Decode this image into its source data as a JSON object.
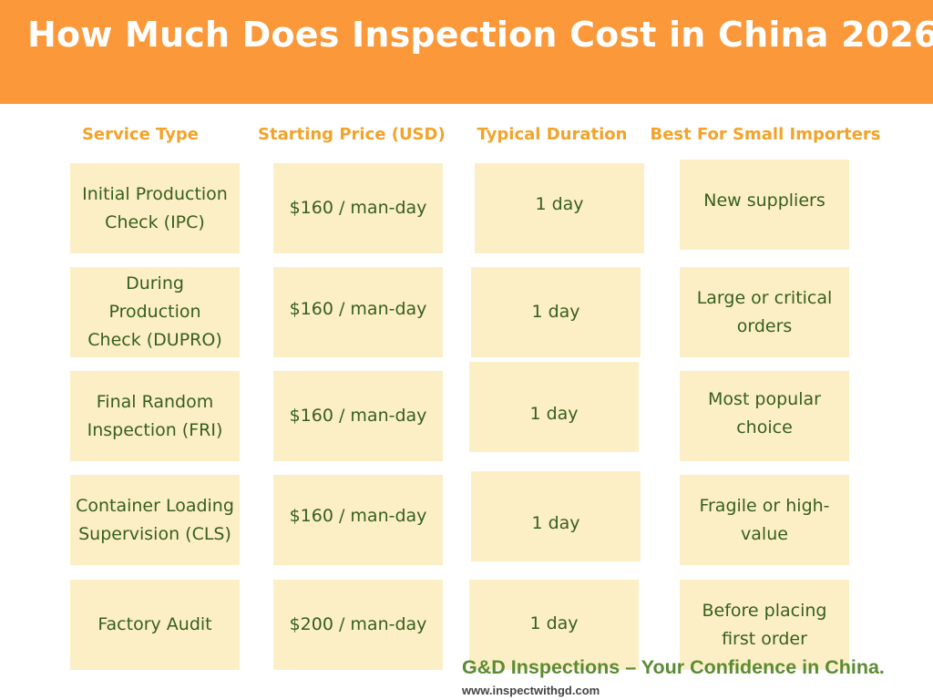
{
  "title": "How Much Does Inspection Cost in China 2026",
  "headers": [
    "Service Type",
    "Starting Price (USD)",
    "Typical Duration",
    "Best For Small Importers"
  ],
  "rows": [
    {
      "service": "Initial Production Check (IPC)",
      "price": "$160 / man-day",
      "duration": "1 day",
      "best_for": "New suppliers"
    },
    {
      "service": "During Production Check (DUPRO)",
      "price": "$160 / man-day",
      "duration": "1 day",
      "best_for": "Large or critical orders"
    },
    {
      "service": "Final Random Inspection (FRI)",
      "price": "$160 / man-day",
      "duration": "1 day",
      "best_for": "Most popular choice"
    },
    {
      "service": "Container Loading Supervision (CLS)",
      "price": "$160 / man-day",
      "duration": "1 day",
      "best_for": "Fragile or high-value"
    },
    {
      "service": "Factory Audit",
      "price": "$200 / man-day",
      "duration": "1 day",
      "best_for": "Before placing first order"
    }
  ],
  "footer": {
    "tagline": "G&D Inspections – Your Confidence in China.",
    "url": "www.inspectwithgd.com"
  },
  "colors": {
    "banner": "#fa983a",
    "header_text": "#f2a32b",
    "cell_bg": "#fdefc5",
    "cell_text": "#365f1f",
    "footer_green": "#5b8b34"
  }
}
